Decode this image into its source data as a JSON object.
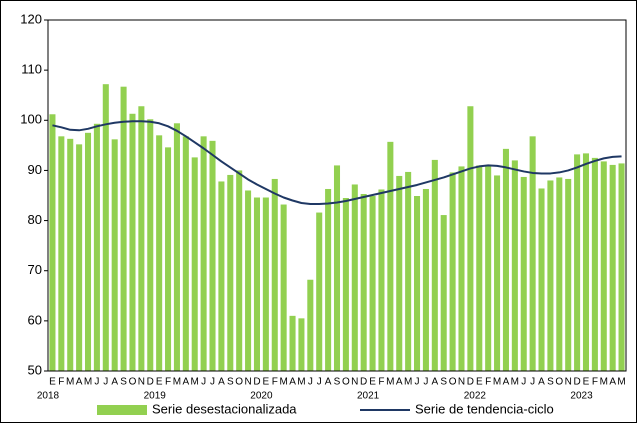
{
  "chart_data": {
    "type": "bar",
    "groups": [
      {
        "label": "2018",
        "categories": [
          "E",
          "F",
          "M",
          "A",
          "M",
          "J",
          "J",
          "A",
          "S",
          "O",
          "N",
          "D"
        ]
      },
      {
        "label": "2019",
        "categories": [
          "E",
          "F",
          "M",
          "A",
          "M",
          "J",
          "J",
          "A",
          "S",
          "O",
          "N",
          "D"
        ]
      },
      {
        "label": "2020",
        "categories": [
          "E",
          "F",
          "M",
          "A",
          "M",
          "J",
          "J",
          "A",
          "S",
          "O",
          "N",
          "D"
        ]
      },
      {
        "label": "2021",
        "categories": [
          "E",
          "F",
          "M",
          "A",
          "M",
          "J",
          "J",
          "A",
          "S",
          "O",
          "N",
          "D"
        ]
      },
      {
        "label": "2022",
        "categories": [
          "E",
          "F",
          "M",
          "A",
          "M",
          "J",
          "J",
          "A",
          "S",
          "O",
          "N",
          "D"
        ]
      },
      {
        "label": "2023",
        "categories": [
          "E",
          "F",
          "M",
          "A",
          "M"
        ]
      }
    ],
    "series": [
      {
        "name": "Serie desestacionalizada",
        "type": "bar",
        "color": "#92d050",
        "values": [
          101.2,
          96.8,
          96.3,
          95.2,
          97.5,
          99.3,
          107.2,
          96.2,
          106.7,
          101.3,
          102.8,
          100.2,
          97.0,
          94.6,
          99.4,
          96.8,
          92.6,
          96.8,
          95.9,
          87.8,
          89.1,
          90.0,
          86.0,
          84.6,
          84.6,
          88.3,
          83.2,
          61.0,
          60.5,
          68.2,
          81.6,
          86.3,
          91.0,
          84.5,
          87.2,
          85.3,
          84.9,
          86.2,
          95.7,
          88.9,
          89.7,
          84.9,
          86.3,
          92.1,
          81.1,
          89.6,
          90.8,
          102.8,
          91.0,
          90.9,
          89.0,
          94.3,
          92.0,
          88.7,
          96.8,
          86.4,
          88.0,
          88.6,
          88.3,
          93.2,
          93.4,
          92.5,
          91.8,
          91.1,
          91.4
        ]
      },
      {
        "name": "Serie de tendencia-ciclo",
        "type": "line",
        "color": "#1f3864",
        "values": [
          99.0,
          98.6,
          98.1,
          98.0,
          98.3,
          98.8,
          99.2,
          99.5,
          99.7,
          99.8,
          99.8,
          99.7,
          99.4,
          98.8,
          97.9,
          96.8,
          95.6,
          94.4,
          93.1,
          91.8,
          90.6,
          89.4,
          88.2,
          87.2,
          86.3,
          85.4,
          84.6,
          84.0,
          83.5,
          83.3,
          83.3,
          83.4,
          83.6,
          83.9,
          84.3,
          84.7,
          85.1,
          85.5,
          85.9,
          86.3,
          86.7,
          87.1,
          87.6,
          88.1,
          88.6,
          89.2,
          89.8,
          90.4,
          90.8,
          91.0,
          90.9,
          90.6,
          90.2,
          89.8,
          89.5,
          89.4,
          89.4,
          89.6,
          90.0,
          90.6,
          91.3,
          91.9,
          92.4,
          92.7,
          92.8
        ]
      }
    ],
    "ylim": [
      50,
      120
    ],
    "yticks": [
      50,
      60,
      70,
      80,
      90,
      100,
      110,
      120
    ],
    "grid": false,
    "legend": "bottom"
  }
}
